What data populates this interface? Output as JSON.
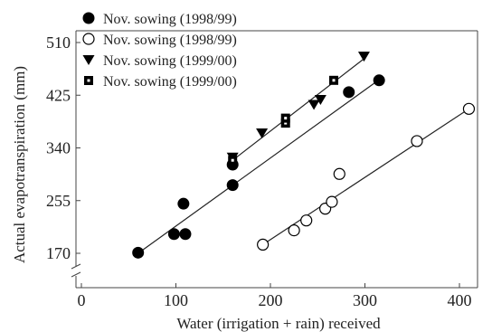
{
  "chart_data": {
    "type": "scatter",
    "xlabel": "Water (irrigation + rain) received",
    "ylabel": "Actual evapotranspiration (mm)",
    "xlim": [
      0,
      420
    ],
    "ylim": [
      170,
      510
    ],
    "xticks": [
      0,
      100,
      200,
      300,
      400
    ],
    "yticks": [
      170,
      255,
      340,
      425,
      510
    ],
    "y_axis_break": true,
    "legend_position": "top-left",
    "series": [
      {
        "name": "Nov. sowing (1998/99)",
        "marker": "filled-circle",
        "color": "#000000",
        "points": [
          [
            60,
            171
          ],
          [
            98,
            201
          ],
          [
            108,
            250
          ],
          [
            110,
            201
          ],
          [
            160,
            280
          ],
          [
            160,
            313
          ],
          [
            283,
            430
          ],
          [
            315,
            449
          ]
        ],
        "fit": [
          [
            60,
            170
          ],
          [
            315,
            450
          ]
        ]
      },
      {
        "name": "Nov. sowing (1998/99)",
        "marker": "open-circle",
        "color": "#000000",
        "points": [
          [
            192,
            184
          ],
          [
            225,
            207
          ],
          [
            238,
            223
          ],
          [
            258,
            242
          ],
          [
            265,
            253
          ],
          [
            273,
            298
          ],
          [
            355,
            351
          ],
          [
            410,
            403
          ]
        ],
        "fit": [
          [
            192,
            184
          ],
          [
            410,
            403
          ]
        ]
      },
      {
        "name": "Nov. sowing (1999/00)",
        "marker": "filled-triangle-down",
        "color": "#000000",
        "points": [
          [
            160,
            325
          ],
          [
            191,
            364
          ],
          [
            246,
            410
          ],
          [
            253,
            418
          ],
          [
            299,
            488
          ]
        ],
        "fit": [
          [
            160,
            320
          ],
          [
            300,
            485
          ]
        ]
      },
      {
        "name": "Nov. sowing (1999/00)",
        "marker": "dotted-square",
        "color": "#000000",
        "points": [
          [
            160,
            320
          ],
          [
            216,
            380
          ],
          [
            216,
            388
          ],
          [
            267,
            449
          ]
        ],
        "fit": null
      }
    ]
  }
}
